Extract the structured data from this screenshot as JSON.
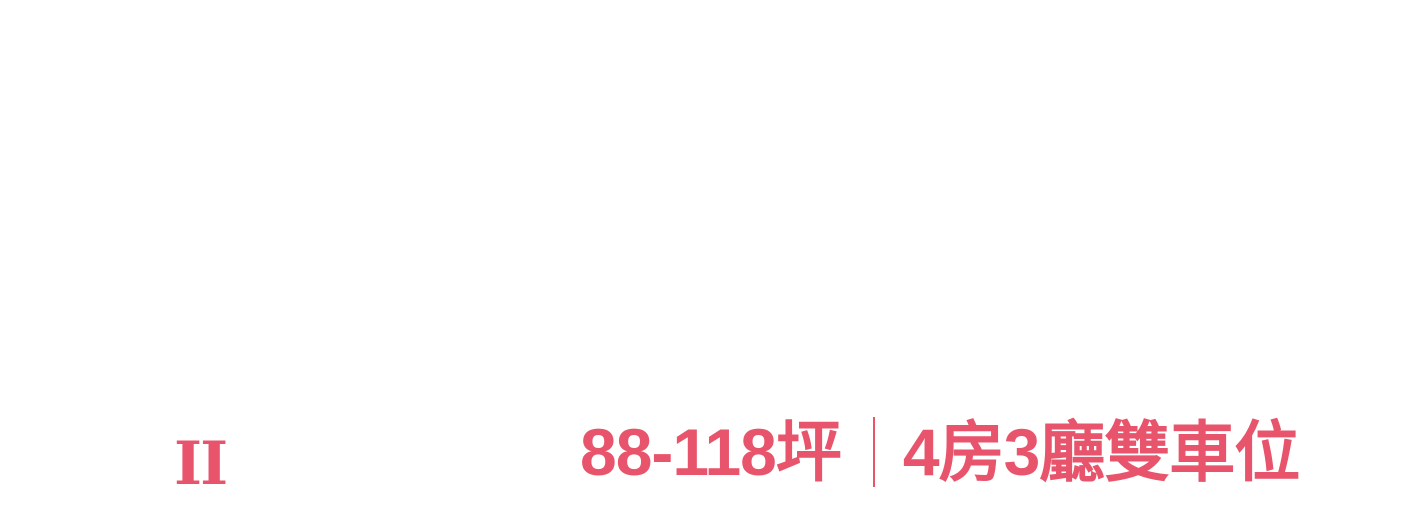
{
  "colors": {
    "accent": "#e8546c",
    "background": "#ffffff"
  },
  "mark": {
    "text": "II"
  },
  "specs": {
    "size": "88-118坪",
    "layout": "4房3廳雙車位"
  }
}
